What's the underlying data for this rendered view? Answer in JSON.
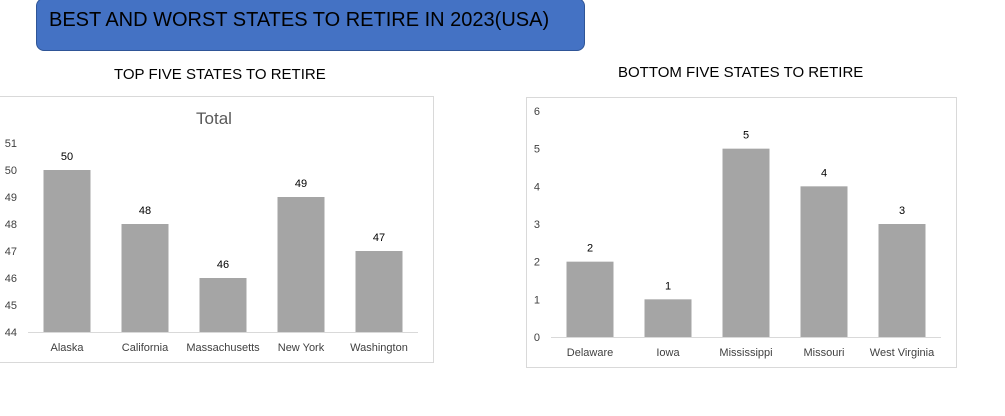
{
  "page": {
    "banner_title": "BEST AND WORST STATES TO RETIRE IN 2023(USA)",
    "left_section_title": "TOP FIVE STATES TO RETIRE",
    "right_section_title": "BOTTOM FIVE STATES TO RETIRE"
  },
  "colors": {
    "banner": "#4472c4",
    "bar": "#a5a5a5",
    "axis_text": "#404040",
    "chart_title": "#595959"
  },
  "chart_data": [
    {
      "type": "bar",
      "title": "Total",
      "categories": [
        "Alaska",
        "California",
        "Massachusetts",
        "New York",
        "Washington"
      ],
      "values": [
        50,
        48,
        46,
        49,
        47
      ],
      "data_labels": [
        "50",
        "48",
        "46",
        "49",
        "47"
      ],
      "ylim": [
        44,
        51
      ],
      "yticks": [
        "44",
        "45",
        "46",
        "47",
        "48",
        "49",
        "50",
        "51"
      ],
      "xlabel": "",
      "ylabel": "",
      "grid": false,
      "legend": "none"
    },
    {
      "type": "bar",
      "title": "",
      "categories": [
        "Delaware",
        "Iowa",
        "Mississippi",
        "Missouri",
        "West Virginia"
      ],
      "values": [
        2,
        1,
        5,
        4,
        3
      ],
      "data_labels": [
        "2",
        "1",
        "5",
        "4",
        "3"
      ],
      "ylim": [
        0,
        6
      ],
      "yticks": [
        "0",
        "1",
        "2",
        "3",
        "4",
        "5",
        "6"
      ],
      "xlabel": "",
      "ylabel": "",
      "grid": false,
      "legend": "none"
    }
  ]
}
